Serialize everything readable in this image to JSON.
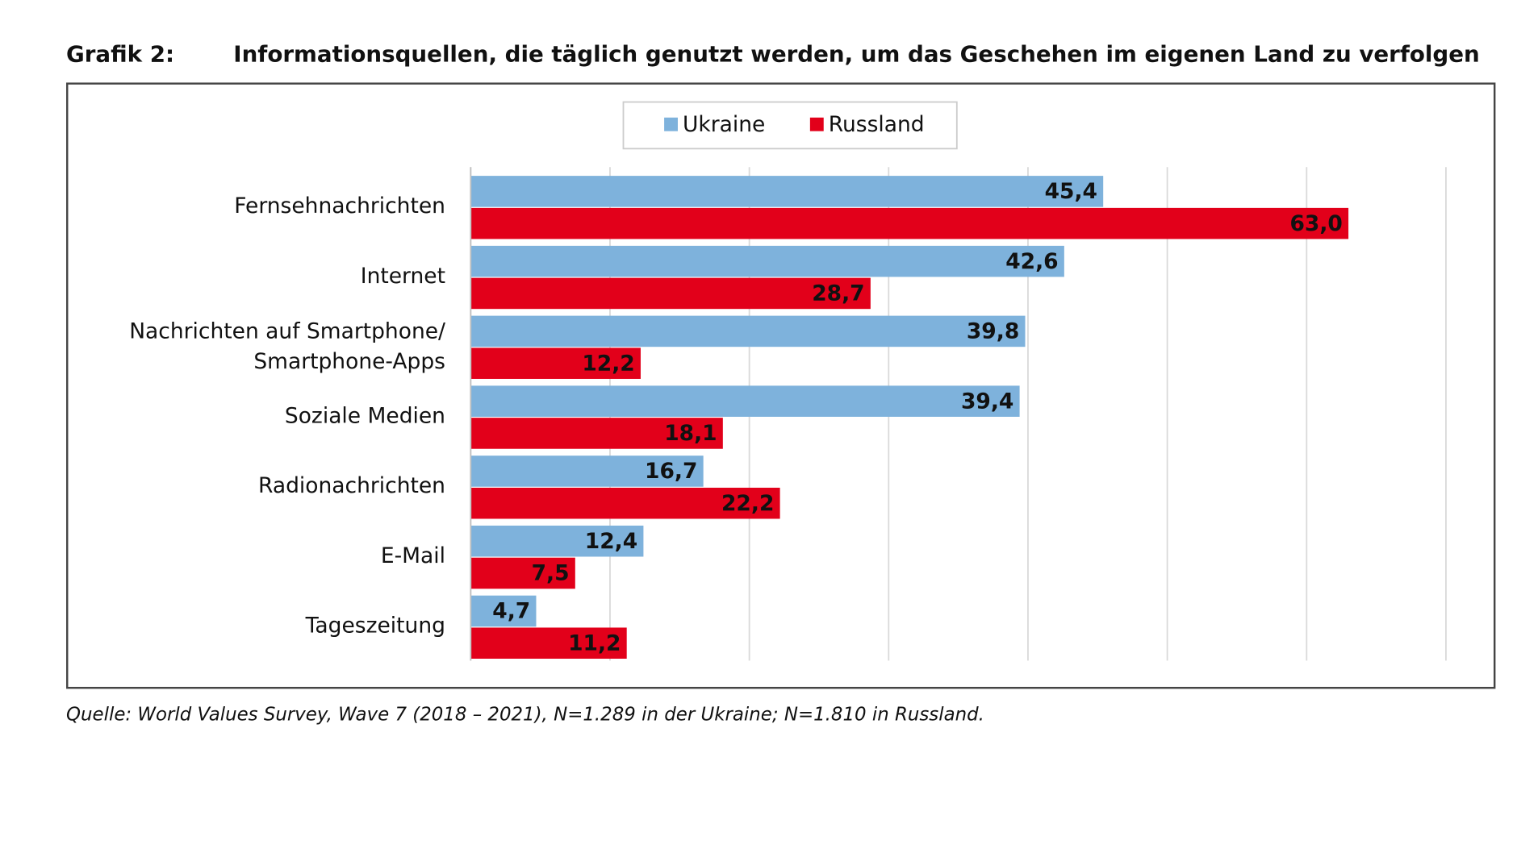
{
  "chart_data": {
    "type": "hbar",
    "label": "Grafik 2:",
    "title": "Informationsquellen, die täglich genutzt werden, um das Geschehen im eigenen Land zu verfolgen",
    "categories": [
      "Fernsehnachrichten",
      "Internet",
      "Nachrichten auf Smartphone/\nSmartphone-Apps",
      "Soziale Medien",
      "Radionachrichten",
      "E-Mail",
      "Tageszeitung"
    ],
    "series": [
      {
        "name": "Ukraine",
        "color": "#7eb2dc",
        "label_color": "#111111",
        "values": [
          45.4,
          42.6,
          39.8,
          39.4,
          16.7,
          12.4,
          4.7
        ],
        "value_labels": [
          "45,4",
          "42,6",
          "39,8",
          "39,4",
          "16,7",
          "12,4",
          "4,7"
        ]
      },
      {
        "name": "Russland",
        "color": "#e2001a",
        "label_color": "#ffffff",
        "values": [
          63.0,
          28.7,
          12.2,
          18.1,
          22.2,
          7.5,
          11.2
        ],
        "value_labels": [
          "63,0",
          "28,7",
          "12,2",
          "18,1",
          "22,2",
          "7,5",
          "11,2"
        ]
      }
    ],
    "xlim": [
      0,
      70
    ],
    "xticks": [
      0,
      10,
      20,
      30,
      40,
      50,
      60,
      70
    ],
    "grid": true,
    "legend": "top",
    "source": "Quelle: World Values Survey, Wave 7 (2018 – 2021), N=1.289 in der Ukraine; N=1.810 in Russland."
  }
}
